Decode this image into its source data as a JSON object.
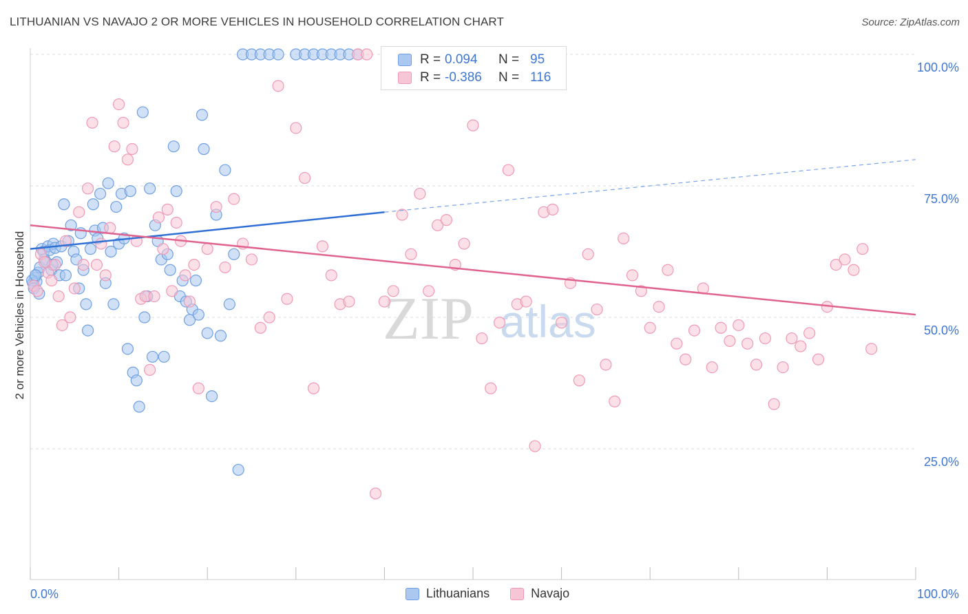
{
  "title": "LITHUANIAN VS NAVAJO 2 OR MORE VEHICLES IN HOUSEHOLD CORRELATION CHART",
  "source": "Source: ZipAtlas.com",
  "watermark": {
    "zip": "ZIP",
    "atlas": "atlas"
  },
  "legend": {
    "r_label": "R =",
    "n_label": "N =",
    "rows": [
      {
        "name": "Lithuanians",
        "r": "0.094",
        "n": "95",
        "color": "#6f9fe0"
      },
      {
        "name": "Navajo",
        "r": "-0.386",
        "n": "116",
        "color": "#ee99b6"
      }
    ]
  },
  "chart_data": {
    "type": "scatter",
    "title": "LITHUANIAN VS NAVAJO 2 OR MORE VEHICLES IN HOUSEHOLD CORRELATION CHART",
    "xlabel": "",
    "ylabel": "2 or more Vehicles in Household",
    "xlim": [
      0,
      100
    ],
    "ylim": [
      0,
      105
    ],
    "x_tick_labels": [
      "0.0%",
      "100.0%"
    ],
    "y_ticks": [
      25,
      50,
      75,
      100
    ],
    "y_tick_labels": [
      "25.0%",
      "50.0%",
      "75.0%",
      "100.0%"
    ],
    "grid": true,
    "legend_position": "top-center",
    "series": [
      {
        "name": "Lithuanians",
        "color": "#6f9fe0",
        "fill": "#aac8f0",
        "trend": {
          "x": [
            0,
            40
          ],
          "y": [
            63.0,
            70.0
          ],
          "dashed_extension_to": [
            100,
            80.0
          ]
        },
        "points": [
          [
            0.3,
            56.5
          ],
          [
            0.5,
            57.5
          ],
          [
            0.7,
            56.8
          ],
          [
            0.9,
            58.5
          ],
          [
            1.1,
            59.5
          ],
          [
            1.3,
            63.0
          ],
          [
            1.5,
            62.5
          ],
          [
            1.6,
            61.0
          ],
          [
            1.8,
            60.5
          ],
          [
            2.0,
            63.5
          ],
          [
            2.2,
            62.8
          ],
          [
            2.4,
            59.0
          ],
          [
            2.6,
            64.0
          ],
          [
            2.8,
            63.2
          ],
          [
            3.0,
            60.5
          ],
          [
            3.3,
            58.0
          ],
          [
            3.5,
            63.5
          ],
          [
            3.8,
            71.5
          ],
          [
            4.0,
            58.0
          ],
          [
            4.3,
            64.5
          ],
          [
            4.6,
            67.5
          ],
          [
            4.9,
            62.5
          ],
          [
            5.2,
            61.0
          ],
          [
            5.5,
            55.5
          ],
          [
            5.7,
            66.0
          ],
          [
            6.0,
            59.0
          ],
          [
            6.3,
            52.5
          ],
          [
            6.5,
            47.5
          ],
          [
            6.8,
            63.0
          ],
          [
            7.1,
            71.5
          ],
          [
            7.3,
            66.5
          ],
          [
            7.6,
            65.0
          ],
          [
            7.9,
            73.5
          ],
          [
            8.2,
            67.0
          ],
          [
            8.5,
            56.5
          ],
          [
            8.8,
            75.5
          ],
          [
            9.1,
            62.5
          ],
          [
            9.4,
            52.5
          ],
          [
            9.7,
            71.0
          ],
          [
            10.0,
            64.0
          ],
          [
            10.3,
            73.5
          ],
          [
            10.6,
            65.0
          ],
          [
            11.0,
            44.0
          ],
          [
            11.3,
            74.0
          ],
          [
            11.6,
            39.5
          ],
          [
            12.0,
            38.0
          ],
          [
            12.3,
            33.0
          ],
          [
            12.7,
            89.0
          ],
          [
            12.9,
            50.0
          ],
          [
            13.2,
            54.0
          ],
          [
            13.5,
            74.5
          ],
          [
            13.8,
            42.5
          ],
          [
            14.1,
            67.5
          ],
          [
            14.4,
            64.5
          ],
          [
            14.8,
            61.0
          ],
          [
            15.1,
            42.5
          ],
          [
            15.5,
            62.0
          ],
          [
            15.8,
            59.0
          ],
          [
            16.2,
            82.5
          ],
          [
            16.5,
            74.0
          ],
          [
            16.9,
            54.0
          ],
          [
            17.2,
            57.0
          ],
          [
            17.6,
            53.0
          ],
          [
            18.0,
            49.5
          ],
          [
            18.3,
            51.5
          ],
          [
            18.7,
            57.0
          ],
          [
            19.0,
            50.5
          ],
          [
            19.4,
            88.5
          ],
          [
            19.6,
            82.0
          ],
          [
            20.0,
            47.0
          ],
          [
            20.5,
            35.0
          ],
          [
            21.0,
            69.5
          ],
          [
            21.5,
            46.5
          ],
          [
            22.0,
            78.0
          ],
          [
            22.5,
            52.5
          ],
          [
            23.0,
            62.0
          ],
          [
            23.5,
            21.0
          ],
          [
            24.0,
            100
          ],
          [
            25.0,
            100
          ],
          [
            26.0,
            100
          ],
          [
            27.0,
            100
          ],
          [
            28.0,
            100
          ],
          [
            30.0,
            100
          ],
          [
            31.0,
            100
          ],
          [
            32.0,
            100
          ],
          [
            33.0,
            100
          ],
          [
            34.0,
            100
          ],
          [
            35.0,
            100
          ],
          [
            36.0,
            100
          ],
          [
            37.0,
            100
          ],
          [
            0.2,
            57.0
          ],
          [
            0.4,
            55.5
          ],
          [
            0.6,
            58.0
          ],
          [
            1.0,
            54.5
          ],
          [
            2.5,
            60.0
          ]
        ]
      },
      {
        "name": "Navajo",
        "color": "#ee99b6",
        "fill": "#f7c6d6",
        "trend": {
          "x": [
            0,
            100
          ],
          "y": [
            67.5,
            50.5
          ]
        },
        "points": [
          [
            0.4,
            56.0
          ],
          [
            0.8,
            55.0
          ],
          [
            1.2,
            62.0
          ],
          [
            1.6,
            60.5
          ],
          [
            2.0,
            58.5
          ],
          [
            2.4,
            57.0
          ],
          [
            2.8,
            60.0
          ],
          [
            3.2,
            54.0
          ],
          [
            3.6,
            48.5
          ],
          [
            4.0,
            64.5
          ],
          [
            4.5,
            50.0
          ],
          [
            5.0,
            55.5
          ],
          [
            5.5,
            70.0
          ],
          [
            6.0,
            60.0
          ],
          [
            6.5,
            74.5
          ],
          [
            7.0,
            87.0
          ],
          [
            7.5,
            60.0
          ],
          [
            8.0,
            64.0
          ],
          [
            8.5,
            58.0
          ],
          [
            9.0,
            67.0
          ],
          [
            9.5,
            82.5
          ],
          [
            10.0,
            90.5
          ],
          [
            10.5,
            87.0
          ],
          [
            11.0,
            80.0
          ],
          [
            11.5,
            82.0
          ],
          [
            12.0,
            64.5
          ],
          [
            12.5,
            53.5
          ],
          [
            13.0,
            54.0
          ],
          [
            13.5,
            40.0
          ],
          [
            14.0,
            54.0
          ],
          [
            14.5,
            69.0
          ],
          [
            15.0,
            63.0
          ],
          [
            15.5,
            70.5
          ],
          [
            16.0,
            55.0
          ],
          [
            16.5,
            68.0
          ],
          [
            17.0,
            64.5
          ],
          [
            17.5,
            58.0
          ],
          [
            18.0,
            53.0
          ],
          [
            18.5,
            60.0
          ],
          [
            19.0,
            36.5
          ],
          [
            20.0,
            63.0
          ],
          [
            21.0,
            71.0
          ],
          [
            22.0,
            59.5
          ],
          [
            23.0,
            72.5
          ],
          [
            24.0,
            64.0
          ],
          [
            25.0,
            61.0
          ],
          [
            26.0,
            48.0
          ],
          [
            27.0,
            50.0
          ],
          [
            28.0,
            94.0
          ],
          [
            29.0,
            53.5
          ],
          [
            30.0,
            86.0
          ],
          [
            31.0,
            76.5
          ],
          [
            32.0,
            36.5
          ],
          [
            33.0,
            63.5
          ],
          [
            34.0,
            58.0
          ],
          [
            35.0,
            52.5
          ],
          [
            36.0,
            53.0
          ],
          [
            37.0,
            100
          ],
          [
            38.0,
            100
          ],
          [
            39.0,
            16.5
          ],
          [
            40.0,
            53.0
          ],
          [
            41.0,
            55.0
          ],
          [
            42.0,
            69.5
          ],
          [
            43.0,
            62.0
          ],
          [
            44.0,
            73.5
          ],
          [
            45.0,
            55.0
          ],
          [
            46.0,
            67.5
          ],
          [
            47.0,
            68.5
          ],
          [
            48.0,
            60.0
          ],
          [
            49.0,
            64.0
          ],
          [
            50.0,
            86.5
          ],
          [
            51.0,
            46.0
          ],
          [
            52.0,
            36.5
          ],
          [
            53.0,
            49.0
          ],
          [
            54.0,
            78.0
          ],
          [
            55.0,
            52.5
          ],
          [
            56.0,
            53.0
          ],
          [
            57.0,
            25.5
          ],
          [
            58.0,
            70.0
          ],
          [
            59.0,
            70.5
          ],
          [
            60.0,
            49.0
          ],
          [
            61.0,
            56.5
          ],
          [
            62.0,
            38.0
          ],
          [
            63.0,
            62.0
          ],
          [
            64.0,
            51.5
          ],
          [
            65.0,
            41.0
          ],
          [
            66.0,
            34.0
          ],
          [
            67.0,
            65.0
          ],
          [
            68.0,
            58.0
          ],
          [
            69.0,
            55.0
          ],
          [
            70.0,
            48.0
          ],
          [
            71.0,
            52.0
          ],
          [
            72.0,
            59.0
          ],
          [
            73.0,
            45.0
          ],
          [
            74.0,
            42.0
          ],
          [
            75.0,
            47.5
          ],
          [
            76.0,
            55.5
          ],
          [
            77.0,
            40.5
          ],
          [
            78.0,
            48.0
          ],
          [
            79.0,
            45.5
          ],
          [
            80.0,
            48.5
          ],
          [
            81.0,
            45.0
          ],
          [
            82.0,
            41.0
          ],
          [
            83.0,
            46.0
          ],
          [
            84.0,
            33.5
          ],
          [
            85.0,
            40.5
          ],
          [
            86.0,
            46.0
          ],
          [
            87.0,
            44.5
          ],
          [
            88.0,
            47.0
          ],
          [
            89.0,
            42.0
          ],
          [
            90.0,
            52.0
          ],
          [
            91.0,
            60.0
          ],
          [
            92.0,
            61.0
          ],
          [
            93.0,
            59.0
          ],
          [
            94.0,
            63.0
          ],
          [
            95.0,
            44.0
          ]
        ]
      }
    ]
  }
}
